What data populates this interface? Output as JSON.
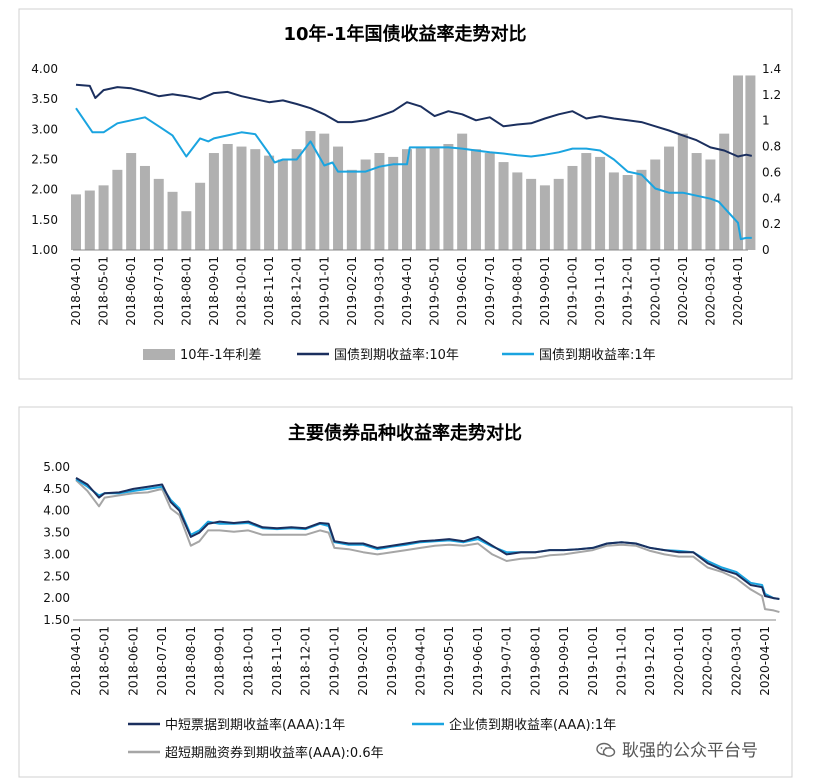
{
  "chart_data": [
    {
      "type": "bar+line",
      "title": "10年-1年国债收益率走势对比",
      "x_ticks": [
        "2018-04-01",
        "2018-05-01",
        "2018-06-01",
        "2018-07-01",
        "2018-08-01",
        "2018-09-01",
        "2018-10-01",
        "2018-11-01",
        "2018-12-01",
        "2019-01-01",
        "2019-02-01",
        "2019-03-01",
        "2019-04-01",
        "2019-05-01",
        "2019-06-01",
        "2019-07-01",
        "2019-08-01",
        "2019-09-01",
        "2019-10-01",
        "2019-11-01",
        "2019-12-01",
        "2020-01-01",
        "2020-02-01",
        "2020-03-01",
        "2020-04-01"
      ],
      "left_axis": {
        "ylim": [
          1.0,
          4.0
        ],
        "ticks": [
          "1.00",
          "1.50",
          "2.00",
          "2.50",
          "3.00",
          "3.50",
          "4.00"
        ]
      },
      "right_axis": {
        "ylim": [
          0,
          1.4
        ],
        "ticks": [
          "0",
          "0.2",
          "0.4",
          "0.6",
          "0.8",
          "1",
          "1.2",
          "1.4"
        ]
      },
      "legend": [
        "10年-1年利差",
        "国债到期收益率:10年",
        "国债到期收益率:1年"
      ],
      "series": [
        {
          "name": "10年-1年利差",
          "kind": "bar",
          "axis": "right",
          "color": "#b0b0b0",
          "x": [
            0,
            0.5,
            1,
            1.5,
            2,
            2.5,
            3,
            3.5,
            4,
            4.5,
            5,
            5.5,
            6,
            6.5,
            7,
            7.5,
            8,
            8.5,
            9,
            9.5,
            10,
            10.5,
            11,
            11.5,
            12,
            12.5,
            13,
            13.5,
            14,
            14.5,
            15,
            15.5,
            16,
            16.5,
            17,
            17.5,
            18,
            18.5,
            19,
            19.5,
            20,
            20.5,
            21,
            21.5,
            22,
            22.5,
            23,
            23.5,
            24,
            24.45
          ],
          "values": [
            0.43,
            0.46,
            0.5,
            0.62,
            0.75,
            0.65,
            0.55,
            0.45,
            0.3,
            0.52,
            0.75,
            0.82,
            0.8,
            0.78,
            0.73,
            0.7,
            0.78,
            0.92,
            0.9,
            0.8,
            0.62,
            0.7,
            0.75,
            0.72,
            0.78,
            0.8,
            0.8,
            0.82,
            0.9,
            0.78,
            0.75,
            0.68,
            0.6,
            0.55,
            0.5,
            0.55,
            0.65,
            0.75,
            0.72,
            0.6,
            0.58,
            0.62,
            0.7,
            0.8,
            0.9,
            0.75,
            0.7,
            0.9,
            1.35,
            1.35
          ]
        },
        {
          "name": "国债到期收益率:10年",
          "kind": "line",
          "axis": "left",
          "color": "#1b2f5e",
          "x": [
            0,
            0.5,
            0.7,
            1,
            1.5,
            2,
            2.5,
            3,
            3.5,
            4,
            4.5,
            5,
            5.5,
            6,
            6.5,
            7,
            7.5,
            8,
            8.5,
            9,
            9.5,
            10,
            10.5,
            11,
            11.5,
            12,
            12.5,
            13,
            13.5,
            14,
            14.5,
            15,
            15.5,
            16,
            16.5,
            17,
            17.5,
            18,
            18.5,
            19,
            19.5,
            20,
            20.5,
            21,
            21.5,
            22,
            22.5,
            23,
            23.5,
            24,
            24.3,
            24.5
          ],
          "values": [
            3.74,
            3.72,
            3.52,
            3.65,
            3.7,
            3.68,
            3.62,
            3.55,
            3.58,
            3.55,
            3.5,
            3.6,
            3.62,
            3.55,
            3.5,
            3.45,
            3.48,
            3.42,
            3.35,
            3.25,
            3.12,
            3.12,
            3.15,
            3.22,
            3.3,
            3.45,
            3.38,
            3.22,
            3.3,
            3.25,
            3.15,
            3.2,
            3.05,
            3.08,
            3.1,
            3.18,
            3.25,
            3.3,
            3.18,
            3.22,
            3.18,
            3.15,
            3.12,
            3.05,
            2.98,
            2.9,
            2.82,
            2.7,
            2.65,
            2.55,
            2.58,
            2.56
          ]
        },
        {
          "name": "国债到期收益率:1年",
          "kind": "line",
          "axis": "left",
          "color": "#1aa4e0",
          "x": [
            0,
            0.3,
            0.6,
            1,
            1.5,
            2,
            2.5,
            3,
            3.5,
            4,
            4.5,
            4.8,
            5,
            5.5,
            6,
            6.5,
            7,
            7.2,
            7.5,
            8,
            8.5,
            9,
            9.3,
            9.5,
            10,
            10.5,
            11,
            11.5,
            12,
            12.1,
            12.5,
            13,
            13.5,
            14,
            14.5,
            15,
            15.5,
            16,
            16.5,
            17,
            17.5,
            18,
            18.5,
            19,
            19.5,
            20,
            20.5,
            21,
            21.5,
            22,
            22.5,
            23,
            23.3,
            23.6,
            24,
            24.1,
            24.3,
            24.5
          ],
          "values": [
            3.35,
            3.15,
            2.95,
            2.95,
            3.1,
            3.15,
            3.2,
            3.05,
            2.9,
            2.55,
            2.85,
            2.8,
            2.85,
            2.9,
            2.95,
            2.92,
            2.6,
            2.45,
            2.5,
            2.5,
            2.8,
            2.4,
            2.45,
            2.3,
            2.3,
            2.3,
            2.38,
            2.42,
            2.42,
            2.7,
            2.7,
            2.7,
            2.7,
            2.68,
            2.65,
            2.62,
            2.6,
            2.57,
            2.55,
            2.58,
            2.62,
            2.68,
            2.68,
            2.65,
            2.5,
            2.3,
            2.25,
            2.02,
            1.95,
            1.95,
            1.9,
            1.85,
            1.8,
            1.65,
            1.45,
            1.18,
            1.2,
            1.2
          ]
        }
      ]
    },
    {
      "type": "line",
      "title": "主要债券品种收益率走势对比",
      "x_ticks": [
        "2018-04-01",
        "2018-05-01",
        "2018-06-01",
        "2018-07-01",
        "2018-08-01",
        "2018-09-01",
        "2018-10-01",
        "2018-11-01",
        "2018-12-01",
        "2019-01-01",
        "2019-02-01",
        "2019-03-01",
        "2019-04-01",
        "2019-05-01",
        "2019-06-01",
        "2019-07-01",
        "2019-08-01",
        "2019-09-01",
        "2019-10-01",
        "2019-11-01",
        "2019-12-01",
        "2020-01-01",
        "2020-02-01",
        "2020-03-01",
        "2020-04-01"
      ],
      "ylim": [
        1.5,
        5.0
      ],
      "y_ticks": [
        "1.50",
        "2.00",
        "2.50",
        "3.00",
        "3.50",
        "4.00",
        "4.50",
        "5.00"
      ],
      "legend": [
        "中短票据到期收益率(AAA):1年",
        "企业债到期收益率(AAA):1年",
        "超短期融资券到期收益率(AAA):0.6年"
      ],
      "series": [
        {
          "name": "中短票据到期收益率(AAA):1年",
          "color": "#1b2f5e",
          "x": [
            0,
            0.4,
            0.8,
            1,
            1.5,
            2,
            2.5,
            3,
            3.3,
            3.6,
            4,
            4.3,
            4.6,
            5,
            5.5,
            6,
            6.5,
            7,
            7.5,
            8,
            8.5,
            8.8,
            9,
            9.5,
            10,
            10.5,
            11,
            11.5,
            12,
            12.5,
            13,
            13.5,
            14,
            14.5,
            15,
            15.5,
            16,
            16.5,
            17,
            17.5,
            18,
            18.5,
            19,
            19.5,
            20,
            20.5,
            21,
            21.5,
            22,
            22.5,
            23,
            23.5,
            23.9,
            24,
            24.3,
            24.5
          ],
          "values": [
            4.75,
            4.6,
            4.3,
            4.4,
            4.42,
            4.5,
            4.55,
            4.6,
            4.2,
            4.0,
            3.4,
            3.5,
            3.7,
            3.75,
            3.72,
            3.75,
            3.62,
            3.6,
            3.62,
            3.6,
            3.72,
            3.7,
            3.3,
            3.25,
            3.25,
            3.15,
            3.2,
            3.25,
            3.3,
            3.32,
            3.35,
            3.3,
            3.4,
            3.2,
            3.0,
            3.05,
            3.05,
            3.1,
            3.1,
            3.12,
            3.15,
            3.25,
            3.28,
            3.25,
            3.15,
            3.1,
            3.05,
            3.05,
            2.8,
            2.65,
            2.55,
            2.3,
            2.25,
            2.05,
            2.0,
            1.98
          ]
        },
        {
          "name": "企业债到期收益率(AAA):1年",
          "color": "#1aa4e0",
          "x": [
            0,
            0.4,
            0.8,
            1,
            1.5,
            2,
            2.5,
            3,
            3.3,
            3.6,
            4,
            4.3,
            4.6,
            5,
            5.5,
            6,
            6.5,
            7,
            7.5,
            8,
            8.5,
            8.8,
            9,
            9.5,
            10,
            10.5,
            11,
            11.5,
            12,
            12.5,
            13,
            13.5,
            14,
            14.5,
            15,
            15.5,
            16,
            16.5,
            17,
            17.5,
            18,
            18.5,
            19,
            19.5,
            20,
            20.5,
            21,
            21.5,
            22,
            22.5,
            23,
            23.5,
            23.9,
            24,
            24.3,
            24.5
          ],
          "values": [
            4.72,
            4.55,
            4.35,
            4.4,
            4.4,
            4.45,
            4.5,
            4.55,
            4.25,
            4.05,
            3.45,
            3.55,
            3.75,
            3.7,
            3.7,
            3.72,
            3.6,
            3.58,
            3.6,
            3.58,
            3.7,
            3.65,
            3.28,
            3.22,
            3.22,
            3.12,
            3.18,
            3.22,
            3.28,
            3.3,
            3.32,
            3.28,
            3.35,
            3.18,
            3.05,
            3.05,
            3.05,
            3.1,
            3.1,
            3.12,
            3.15,
            3.25,
            3.28,
            3.25,
            3.15,
            3.1,
            3.08,
            3.05,
            2.85,
            2.7,
            2.6,
            2.35,
            2.3,
            2.1,
            2.0,
            1.98
          ]
        },
        {
          "name": "超短期融资券到期收益率(AAA):0.6年",
          "color": "#a6a6a6",
          "x": [
            0,
            0.4,
            0.8,
            1,
            1.5,
            2,
            2.5,
            3,
            3.3,
            3.6,
            4,
            4.3,
            4.6,
            5,
            5.5,
            6,
            6.5,
            7,
            7.5,
            8,
            8.5,
            8.8,
            9,
            9.5,
            10,
            10.5,
            11,
            11.5,
            12,
            12.5,
            13,
            13.5,
            14,
            14.5,
            15,
            15.5,
            16,
            16.5,
            17,
            17.5,
            18,
            18.5,
            19,
            19.5,
            20,
            20.5,
            21,
            21.5,
            22,
            22.5,
            23,
            23.5,
            23.9,
            24,
            24.3,
            24.5
          ],
          "values": [
            4.7,
            4.45,
            4.1,
            4.3,
            4.35,
            4.4,
            4.42,
            4.5,
            4.05,
            3.9,
            3.2,
            3.3,
            3.55,
            3.55,
            3.52,
            3.55,
            3.45,
            3.45,
            3.45,
            3.45,
            3.55,
            3.5,
            3.15,
            3.12,
            3.05,
            3.0,
            3.05,
            3.1,
            3.15,
            3.2,
            3.22,
            3.2,
            3.25,
            3.0,
            2.85,
            2.9,
            2.92,
            2.98,
            3.0,
            3.05,
            3.1,
            3.2,
            3.22,
            3.2,
            3.08,
            3.0,
            2.95,
            2.95,
            2.7,
            2.6,
            2.45,
            2.2,
            2.05,
            1.75,
            1.72,
            1.68
          ]
        }
      ]
    }
  ],
  "watermark": {
    "text": "耿强的公众平台号",
    "icon": "wechat-icon"
  }
}
